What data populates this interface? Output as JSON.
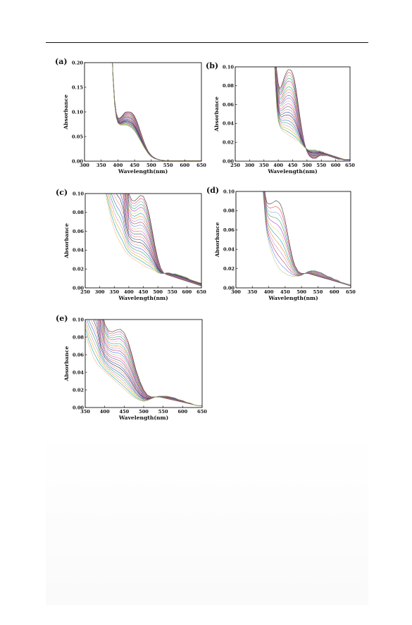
{
  "chart_data": [
    {
      "type": "line",
      "panel_label": "(a)",
      "xlabel": "Wavelength(nm)",
      "ylabel": "Absorbance",
      "xlim": [
        300,
        650
      ],
      "ylim": [
        0.0,
        0.2
      ],
      "xticks": [
        300,
        350,
        400,
        450,
        500,
        550,
        600,
        650
      ],
      "yticks": [
        0.0,
        0.05,
        0.1,
        0.15,
        0.2
      ],
      "grid": false,
      "curve_count": 24,
      "x": [
        380,
        385,
        390,
        395,
        400,
        405,
        410,
        415,
        420,
        425,
        430,
        435,
        440,
        445,
        450,
        455,
        460,
        465,
        470,
        475,
        480,
        485,
        490,
        495,
        500,
        505,
        510,
        515,
        520,
        525,
        530,
        535,
        540,
        545,
        550,
        555,
        560,
        570,
        580,
        590,
        600,
        610,
        620,
        630,
        640,
        650
      ],
      "series_first": [
        0.26,
        0.18,
        0.125,
        0.098,
        0.088,
        0.087,
        0.09,
        0.094,
        0.098,
        0.1,
        0.1,
        0.1,
        0.099,
        0.096,
        0.091,
        0.084,
        0.075,
        0.065,
        0.055,
        0.045,
        0.036,
        0.028,
        0.021,
        0.016,
        0.012,
        0.009,
        0.007,
        0.005,
        0.004,
        0.003,
        0.002,
        0.002,
        0.001,
        0.001,
        0.001,
        0.001,
        0.001,
        0.001,
        0.001,
        0.001,
        0.001,
        0.001,
        0.001,
        0.001,
        0.001,
        0.001
      ],
      "series_last": [
        0.26,
        0.17,
        0.115,
        0.088,
        0.077,
        0.074,
        0.073,
        0.073,
        0.073,
        0.073,
        0.072,
        0.07,
        0.068,
        0.065,
        0.061,
        0.056,
        0.05,
        0.044,
        0.038,
        0.032,
        0.026,
        0.021,
        0.016,
        0.012,
        0.009,
        0.007,
        0.005,
        0.004,
        0.003,
        0.002,
        0.002,
        0.001,
        0.001,
        0.001,
        0.001,
        0.001,
        0.001,
        0.001,
        0.001,
        0.001,
        0.001,
        0.001,
        0.001,
        0.001,
        0.001,
        0.001
      ]
    },
    {
      "type": "line",
      "panel_label": "(b)",
      "xlabel": "Wavelength(nm)",
      "ylabel": "Absorbance",
      "xlim": [
        250,
        650
      ],
      "ylim": [
        0.0,
        0.1
      ],
      "xticks": [
        250,
        300,
        350,
        400,
        450,
        500,
        550,
        600,
        650
      ],
      "yticks": [
        0.0,
        0.02,
        0.04,
        0.06,
        0.08,
        0.1
      ],
      "grid": false,
      "curve_count": 24,
      "x": [
        385,
        390,
        395,
        400,
        405,
        410,
        415,
        420,
        425,
        430,
        435,
        440,
        445,
        450,
        455,
        460,
        465,
        470,
        475,
        480,
        485,
        490,
        495,
        500,
        505,
        510,
        515,
        520,
        525,
        530,
        535,
        540,
        545,
        550,
        555,
        560,
        570,
        580,
        590,
        600,
        610,
        620,
        630,
        640,
        650
      ],
      "series_first": [
        0.13,
        0.11,
        0.095,
        0.082,
        0.077,
        0.079,
        0.083,
        0.088,
        0.092,
        0.095,
        0.097,
        0.097,
        0.096,
        0.093,
        0.088,
        0.08,
        0.07,
        0.059,
        0.048,
        0.038,
        0.029,
        0.021,
        0.015,
        0.01,
        0.007,
        0.005,
        0.004,
        0.003,
        0.003,
        0.003,
        0.004,
        0.005,
        0.006,
        0.006,
        0.006,
        0.006,
        0.006,
        0.005,
        0.004,
        0.003,
        0.002,
        0.002,
        0.001,
        0.001,
        0.001
      ],
      "series_last": [
        0.12,
        0.08,
        0.055,
        0.042,
        0.037,
        0.034,
        0.032,
        0.031,
        0.03,
        0.029,
        0.028,
        0.027,
        0.026,
        0.025,
        0.024,
        0.023,
        0.022,
        0.021,
        0.02,
        0.018,
        0.017,
        0.015,
        0.014,
        0.013,
        0.012,
        0.012,
        0.012,
        0.012,
        0.012,
        0.012,
        0.011,
        0.011,
        0.011,
        0.01,
        0.01,
        0.009,
        0.008,
        0.007,
        0.006,
        0.005,
        0.004,
        0.003,
        0.002,
        0.002,
        0.002
      ]
    },
    {
      "type": "line",
      "panel_label": "(c)",
      "xlabel": "Wavelength(nm)",
      "ylabel": "Absorbance",
      "xlim": [
        250,
        650
      ],
      "ylim": [
        0.0,
        0.1
      ],
      "xticks": [
        250,
        300,
        350,
        400,
        450,
        500,
        550,
        600,
        650
      ],
      "yticks": [
        0.0,
        0.02,
        0.04,
        0.06,
        0.08,
        0.1
      ],
      "grid": false,
      "curve_count": 24,
      "x": [
        320,
        330,
        340,
        350,
        360,
        370,
        380,
        390,
        400,
        410,
        420,
        430,
        440,
        450,
        460,
        470,
        480,
        490,
        500,
        510,
        520,
        530,
        540,
        550,
        560,
        570,
        580,
        590,
        600,
        610,
        620,
        630,
        640,
        650
      ],
      "series_first": [
        0.2,
        0.2,
        0.2,
        0.2,
        0.2,
        0.2,
        0.18,
        0.13,
        0.1,
        0.093,
        0.092,
        0.095,
        0.098,
        0.097,
        0.09,
        0.078,
        0.062,
        0.045,
        0.031,
        0.021,
        0.016,
        0.014,
        0.013,
        0.012,
        0.011,
        0.01,
        0.009,
        0.008,
        0.007,
        0.006,
        0.005,
        0.004,
        0.003,
        0.002
      ],
      "series_last": [
        0.1,
        0.085,
        0.072,
        0.062,
        0.054,
        0.048,
        0.043,
        0.038,
        0.035,
        0.032,
        0.03,
        0.028,
        0.026,
        0.024,
        0.022,
        0.021,
        0.019,
        0.018,
        0.016,
        0.015,
        0.015,
        0.016,
        0.016,
        0.015,
        0.015,
        0.014,
        0.013,
        0.012,
        0.011,
        0.009,
        0.008,
        0.007,
        0.006,
        0.005
      ]
    },
    {
      "type": "line",
      "panel_label": "(d)",
      "xlabel": "Wavelength(nm)",
      "ylabel": "Absorbance",
      "xlim": [
        300,
        650
      ],
      "ylim": [
        0.0,
        0.1
      ],
      "xticks": [
        300,
        350,
        400,
        450,
        500,
        550,
        600,
        650
      ],
      "yticks": [
        0.0,
        0.02,
        0.04,
        0.06,
        0.08,
        0.1
      ],
      "grid": false,
      "curve_count": 12,
      "x": [
        380,
        385,
        390,
        395,
        400,
        405,
        410,
        415,
        420,
        425,
        430,
        435,
        440,
        445,
        450,
        455,
        460,
        465,
        470,
        475,
        480,
        490,
        500,
        510,
        520,
        530,
        540,
        550,
        560,
        570,
        580,
        590,
        600,
        610,
        620,
        630,
        640,
        650
      ],
      "series_first": [
        0.14,
        0.11,
        0.095,
        0.088,
        0.087,
        0.087,
        0.088,
        0.089,
        0.09,
        0.09,
        0.089,
        0.087,
        0.083,
        0.077,
        0.07,
        0.061,
        0.052,
        0.043,
        0.035,
        0.028,
        0.023,
        0.017,
        0.015,
        0.015,
        0.015,
        0.014,
        0.013,
        0.012,
        0.011,
        0.01,
        0.009,
        0.008,
        0.007,
        0.006,
        0.005,
        0.004,
        0.003,
        0.002
      ],
      "series_last": [
        0.11,
        0.09,
        0.068,
        0.055,
        0.047,
        0.041,
        0.036,
        0.031,
        0.027,
        0.024,
        0.021,
        0.019,
        0.017,
        0.016,
        0.015,
        0.014,
        0.013,
        0.013,
        0.012,
        0.012,
        0.012,
        0.012,
        0.013,
        0.015,
        0.017,
        0.018,
        0.018,
        0.017,
        0.016,
        0.014,
        0.012,
        0.011,
        0.009,
        0.008,
        0.006,
        0.005,
        0.004,
        0.003
      ]
    },
    {
      "type": "line",
      "panel_label": "(e)",
      "xlabel": "Wavelength(nm)",
      "ylabel": "Absorbance",
      "xlim": [
        350,
        650
      ],
      "ylim": [
        0.0,
        0.1
      ],
      "xticks": [
        350,
        400,
        450,
        500,
        550,
        600,
        650
      ],
      "yticks": [
        0.0,
        0.02,
        0.04,
        0.06,
        0.08,
        0.1
      ],
      "grid": false,
      "curve_count": 24,
      "x": [
        350,
        360,
        370,
        380,
        390,
        400,
        410,
        420,
        430,
        440,
        450,
        460,
        470,
        480,
        490,
        500,
        510,
        520,
        530,
        540,
        550,
        560,
        570,
        580,
        590,
        600,
        610,
        620,
        630,
        640,
        650
      ],
      "series_first": [
        0.2,
        0.2,
        0.2,
        0.18,
        0.12,
        0.095,
        0.087,
        0.086,
        0.088,
        0.089,
        0.085,
        0.075,
        0.06,
        0.043,
        0.03,
        0.02,
        0.014,
        0.012,
        0.012,
        0.012,
        0.011,
        0.01,
        0.009,
        0.008,
        0.007,
        0.006,
        0.005,
        0.004,
        0.003,
        0.002,
        0.002
      ],
      "series_last": [
        0.085,
        0.07,
        0.058,
        0.05,
        0.045,
        0.041,
        0.037,
        0.033,
        0.029,
        0.025,
        0.021,
        0.017,
        0.013,
        0.01,
        0.008,
        0.007,
        0.008,
        0.01,
        0.012,
        0.013,
        0.013,
        0.013,
        0.012,
        0.011,
        0.009,
        0.008,
        0.006,
        0.005,
        0.003,
        0.002,
        0.002
      ]
    }
  ],
  "series_colors": [
    "#222222",
    "#e8393a",
    "#3a56d8",
    "#1fa84a",
    "#c026d3",
    "#d9b400",
    "#0b9fb0",
    "#ff7f1e",
    "#7b3fb5",
    "#aa3355",
    "#5577ff",
    "#77aa22",
    "#ff44aa",
    "#556677",
    "#cc2222",
    "#2244aa"
  ]
}
